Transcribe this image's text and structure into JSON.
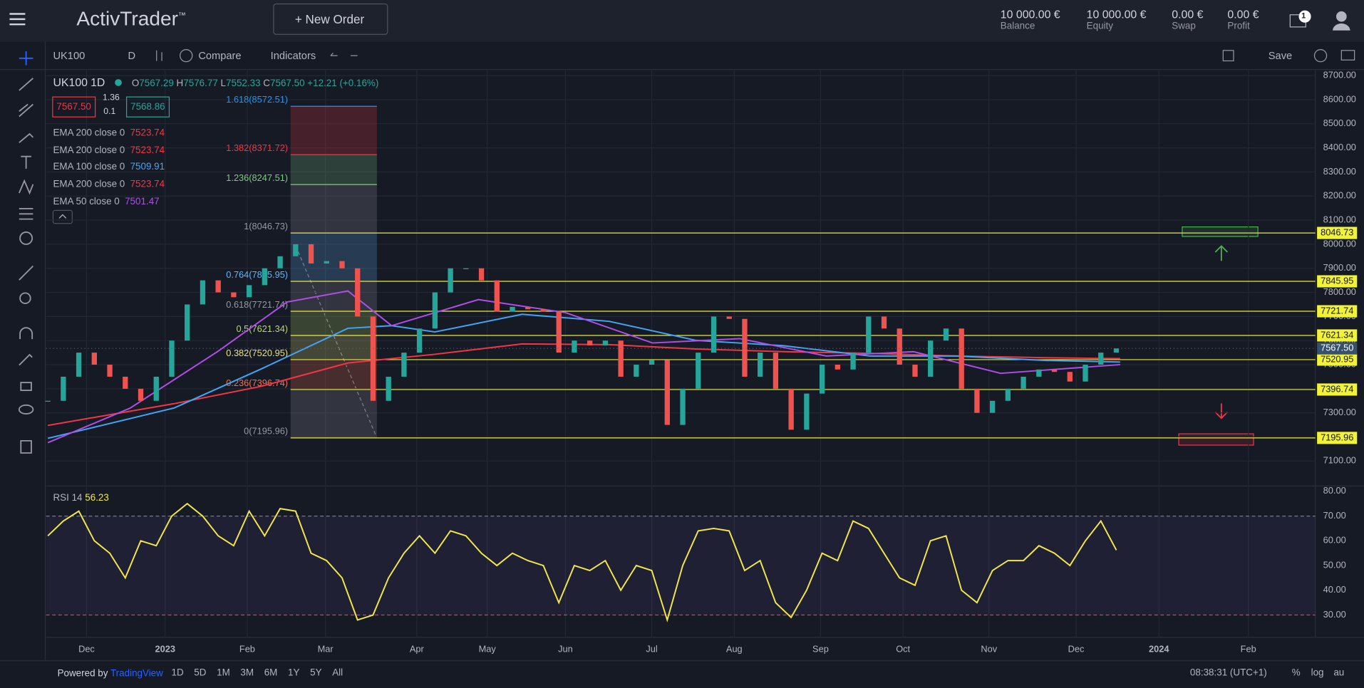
{
  "header": {
    "logo": "ActivTrader",
    "logo_mark": "™",
    "new_order": "New Order",
    "stats": [
      {
        "value": "10 000.00 €",
        "label": "Balance"
      },
      {
        "value": "10 000.00 €",
        "label": "Equity"
      },
      {
        "value": "0.00 €",
        "label": "Swap"
      },
      {
        "value": "0.00 €",
        "label": "Profit"
      }
    ],
    "mail_count": "1"
  },
  "toolbar": {
    "symbol": "UK100",
    "interval": "D",
    "compare": "Compare",
    "indicators": "Indicators",
    "save": "Save"
  },
  "legend": {
    "symbol": "UK100",
    "interval": "1D",
    "ohlc": [
      {
        "k": "O",
        "v": "7567.29"
      },
      {
        "k": "H",
        "v": "7576.77"
      },
      {
        "k": "L",
        "v": "7552.33"
      },
      {
        "k": "C",
        "v": "7567.50"
      }
    ],
    "change": "+12.21 (+0.16%)",
    "sell": "7567.50",
    "spread": "1.36",
    "lot": "0.1",
    "buy": "7568.86",
    "indicators": [
      {
        "name": "EMA 200 close 0",
        "value": "7523.74",
        "color": "#f23645"
      },
      {
        "name": "EMA 200 close 0",
        "value": "7523.74",
        "color": "#f23645"
      },
      {
        "name": "EMA 100 close 0",
        "value": "7509.91",
        "color": "#42a5f5"
      },
      {
        "name": "EMA 200 close 0",
        "value": "7523.74",
        "color": "#f23645"
      },
      {
        "name": "EMA 50 close 0",
        "value": "7501.47",
        "color": "#b04ee8"
      }
    ]
  },
  "rsi_legend": {
    "name": "RSI 14",
    "value": "56.23"
  },
  "bottom": {
    "powered": "Powered by",
    "brand": "TradingView",
    "ranges": [
      "1D",
      "5D",
      "1M",
      "3M",
      "6M",
      "1Y",
      "5Y",
      "All"
    ],
    "clock": "08:38:31 (UTC+1)",
    "pct": "%",
    "log": "log",
    "auto": "au"
  },
  "chart_data": [
    {
      "type": "candlestick",
      "xlim": [
        -0.45,
        327.4
      ],
      "ylim": [
        7000,
        8725
      ],
      "grid": true,
      "up_color": "#26a69a",
      "down_color": "#ef5350",
      "x": [
        0,
        4,
        8,
        12,
        16,
        20,
        24,
        28,
        32,
        36,
        40,
        44,
        48,
        52,
        56,
        60,
        64,
        68,
        72,
        76,
        80,
        84,
        88,
        92,
        96,
        100,
        104,
        108,
        112,
        116,
        120,
        124,
        128,
        132,
        136,
        140,
        144,
        148,
        152,
        156,
        160,
        164,
        168,
        172,
        176,
        180,
        184,
        188,
        192,
        196,
        200,
        204,
        208,
        212,
        216,
        220,
        224,
        228,
        232,
        236,
        240,
        244,
        248,
        252,
        256,
        260,
        264,
        268,
        272,
        276
      ],
      "values": [
        7350,
        7450,
        7550,
        7500,
        7450,
        7400,
        7350,
        7450,
        7600,
        7750,
        7850,
        7800,
        7780,
        7830,
        7900,
        7950,
        8000,
        7920,
        7930,
        7900,
        7700,
        7350,
        7450,
        7550,
        7650,
        7800,
        7900,
        7900,
        7850,
        7720,
        7740,
        7730,
        7720,
        7550,
        7600,
        7580,
        7600,
        7450,
        7500,
        7520,
        7250,
        7400,
        7550,
        7700,
        7690,
        7450,
        7550,
        7400,
        7230,
        7380,
        7500,
        7480,
        7550,
        7700,
        7650,
        7500,
        7450,
        7600,
        7650,
        7400,
        7300,
        7350,
        7400,
        7450,
        7480,
        7470,
        7430,
        7500,
        7550,
        7567.5
      ],
      "lines": [
        {
          "color": "#f23645",
          "x": [
            0,
            32.6,
            55.1,
            77.5,
            100,
            122.5,
            145,
            167.4,
            190,
            212.4,
            234.8,
            257.3,
            277
          ],
          "values": [
            7248,
            7338,
            7410,
            7507,
            7543,
            7586,
            7583,
            7565,
            7554,
            7547,
            7536,
            7529,
            7525
          ]
        },
        {
          "color": "#42a5f5",
          "x": [
            0,
            32.6,
            55.1,
            77.5,
            88.8,
            100,
            122.5,
            145,
            167.4,
            190,
            212.4,
            234.8,
            257.3,
            277
          ],
          "values": [
            7194,
            7320,
            7482,
            7651,
            7662,
            7636,
            7709,
            7680,
            7601,
            7579,
            7536,
            7536,
            7518,
            7511
          ]
        },
        {
          "color": "#b04ee8",
          "x": [
            0,
            21.3,
            43.8,
            61.8,
            77.5,
            88.8,
            111.2,
            133.7,
            156.2,
            178.7,
            201.1,
            223.6,
            246.1,
            277
          ],
          "values": [
            7176,
            7320,
            7554,
            7760,
            7806,
            7662,
            7770,
            7716,
            7590,
            7608,
            7536,
            7554,
            7464,
            7500
          ]
        }
      ],
      "fib_range": [
        62.7,
        85
      ],
      "fib": [
        {
          "label": "1.618(8572.51)",
          "price": 8572.51,
          "color": "#2196f3",
          "extend": false
        },
        {
          "label": "1.382(8371.72)",
          "price": 8371.72,
          "color": "#f23645",
          "extend": false
        },
        {
          "label": "1.236(8247.51)",
          "price": 8247.51,
          "color": "#81c784",
          "extend": false
        },
        {
          "label": "1(8046.73)",
          "price": 8046.73,
          "color": "#9598a1",
          "extend": true
        },
        {
          "label": "0.764(7845.95)",
          "price": 7845.95,
          "color": "#64b5f6",
          "extend": true
        },
        {
          "label": "0.618(7721.74)",
          "price": 7721.74,
          "color": "#9598a1",
          "extend": true
        },
        {
          "label": "0.5(7621.34)",
          "price": 7621.34,
          "color": "#b5d96b",
          "extend": true
        },
        {
          "label": "0.382(7520.95)",
          "price": 7520.95,
          "color": "#e8e27a",
          "extend": true
        },
        {
          "label": "0.236(7396.74)",
          "price": 7396.74,
          "color": "#f7704d",
          "extend": true
        },
        {
          "label": "0(7195.96)",
          "price": 7195.96,
          "color": "#9598a1",
          "extend": true
        }
      ],
      "last_price": {
        "value": 7567.5,
        "label": "7567.50"
      },
      "yticks": [
        {
          "value": 8700,
          "label": "8700.00"
        },
        {
          "value": 8600,
          "label": "8600.00"
        },
        {
          "value": 8500,
          "label": "8500.00"
        },
        {
          "value": 8400,
          "label": "8400.00"
        },
        {
          "value": 8300,
          "label": "8300.00"
        },
        {
          "value": 8200,
          "label": "8200.00"
        },
        {
          "value": 8100,
          "label": "8100.00"
        },
        {
          "value": 8000,
          "label": "8000.00"
        },
        {
          "value": 7900,
          "label": "7900.00"
        },
        {
          "value": 7800,
          "label": "7800.00"
        },
        {
          "value": 7700,
          "label": "7700.00"
        },
        {
          "value": 7600,
          "label": "7600.00"
        },
        {
          "value": 7500,
          "label": "7500.00"
        },
        {
          "value": 7400,
          "label": "7400.00"
        },
        {
          "value": 7300,
          "label": "7300.00"
        },
        {
          "value": 7200,
          "label": "7200.00"
        },
        {
          "value": 7100,
          "label": "7100.00"
        }
      ],
      "xticks": [
        {
          "value": 10,
          "label": "Dec"
        },
        {
          "value": 30.3,
          "label": "2023"
        },
        {
          "value": 51.5,
          "label": "Feb"
        },
        {
          "value": 71.7,
          "label": "Mar"
        },
        {
          "value": 95.3,
          "label": "Apr"
        },
        {
          "value": 113.5,
          "label": "May"
        },
        {
          "value": 133.7,
          "label": "Jun"
        },
        {
          "value": 156,
          "label": "Jul"
        },
        {
          "value": 177.3,
          "label": "Aug"
        },
        {
          "value": 199.6,
          "label": "Sep"
        },
        {
          "value": 220.9,
          "label": "Oct"
        },
        {
          "value": 243.1,
          "label": "Nov"
        },
        {
          "value": 265.6,
          "label": "Dec"
        },
        {
          "value": 287,
          "label": "2024"
        },
        {
          "value": 310.1,
          "label": "Feb"
        }
      ]
    },
    {
      "type": "line",
      "color": "#f2e84b",
      "xlim": [
        -0.45,
        327.4
      ],
      "ylim": [
        21,
        81.8
      ],
      "band": [
        30,
        70
      ],
      "x": [
        0,
        4,
        8,
        12,
        16,
        20,
        24,
        28,
        32,
        36,
        40,
        44,
        48,
        52,
        56,
        60,
        64,
        68,
        72,
        76,
        80,
        84,
        88,
        92,
        96,
        100,
        104,
        108,
        112,
        116,
        120,
        124,
        128,
        132,
        136,
        140,
        144,
        148,
        152,
        156,
        160,
        164,
        168,
        172,
        176,
        180,
        184,
        188,
        192,
        196,
        200,
        204,
        208,
        212,
        216,
        220,
        224,
        228,
        232,
        236,
        240,
        244,
        248,
        252,
        256,
        260,
        264,
        268,
        272,
        276
      ],
      "values": [
        62,
        68,
        72,
        60,
        55,
        45,
        60,
        58,
        70,
        75,
        70,
        62,
        58,
        72,
        62,
        73,
        72,
        55,
        52,
        45,
        28,
        30,
        45,
        55,
        62,
        55,
        64,
        62,
        55,
        50,
        55,
        52,
        50,
        35,
        50,
        48,
        52,
        40,
        50,
        48,
        28,
        50,
        64,
        65,
        64,
        48,
        52,
        35,
        29,
        40,
        55,
        52,
        68,
        65,
        55,
        45,
        42,
        60,
        62,
        40,
        35,
        48,
        52,
        52,
        58,
        55,
        50,
        60,
        68,
        56.23
      ],
      "yticks": [
        {
          "value": 80,
          "label": "80.00"
        },
        {
          "value": 70,
          "label": "70.00"
        },
        {
          "value": 60,
          "label": "60.00"
        },
        {
          "value": 50,
          "label": "50.00"
        },
        {
          "value": 40,
          "label": "40.00"
        },
        {
          "value": 30,
          "label": "30.00"
        }
      ]
    }
  ]
}
